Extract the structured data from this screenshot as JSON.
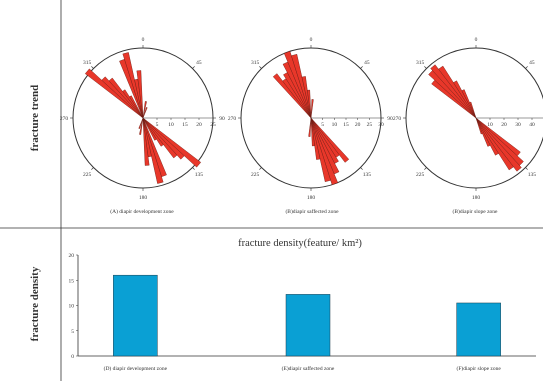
{
  "sections": {
    "top_label": "fracture trend",
    "bottom_label": "fracture density"
  },
  "chart_data": [
    {
      "type": "rose",
      "caption": "(A) diapir development zone",
      "direction_ticks": [
        "0",
        "45",
        "90",
        "135",
        "180",
        "225",
        "270",
        "315"
      ],
      "scale_ticks": [
        "5",
        "10",
        "15",
        "20",
        "25"
      ],
      "petals": [
        {
          "azimuth": 310,
          "value": 26
        },
        {
          "azimuth": 315,
          "value": 20
        },
        {
          "azimuth": 320,
          "value": 18
        },
        {
          "azimuth": 325,
          "value": 12
        },
        {
          "azimuth": 330,
          "value": 9
        },
        {
          "azimuth": 340,
          "value": 22
        },
        {
          "azimuth": 345,
          "value": 24
        },
        {
          "azimuth": 350,
          "value": 14
        },
        {
          "azimuth": 355,
          "value": 17
        },
        {
          "azimuth": 10,
          "value": 6
        },
        {
          "azimuth": 20,
          "value": 4
        },
        {
          "azimuth": 130,
          "value": 26
        },
        {
          "azimuth": 135,
          "value": 20
        },
        {
          "azimuth": 140,
          "value": 18
        },
        {
          "azimuth": 145,
          "value": 12
        },
        {
          "azimuth": 150,
          "value": 9
        },
        {
          "azimuth": 160,
          "value": 22
        },
        {
          "azimuth": 165,
          "value": 24
        },
        {
          "azimuth": 170,
          "value": 14
        },
        {
          "azimuth": 175,
          "value": 17
        },
        {
          "azimuth": 190,
          "value": 6
        },
        {
          "azimuth": 200,
          "value": 4
        }
      ],
      "max": 25,
      "fill": "#e8372a"
    },
    {
      "type": "rose",
      "caption": "(B)diapir saffected zone",
      "direction_ticks": [
        "0",
        "45",
        "90",
        "135",
        "180",
        "225",
        "270",
        "315"
      ],
      "scale_ticks": [
        "5",
        "10",
        "15",
        "20",
        "25",
        "30"
      ],
      "petals": [
        {
          "azimuth": 320,
          "value": 24
        },
        {
          "azimuth": 325,
          "value": 20
        },
        {
          "azimuth": 330,
          "value": 22
        },
        {
          "azimuth": 335,
          "value": 26
        },
        {
          "azimuth": 340,
          "value": 30
        },
        {
          "azimuth": 345,
          "value": 28
        },
        {
          "azimuth": 350,
          "value": 18
        },
        {
          "azimuth": 355,
          "value": 12
        },
        {
          "azimuth": 5,
          "value": 8
        },
        {
          "azimuth": 140,
          "value": 24
        },
        {
          "azimuth": 145,
          "value": 20
        },
        {
          "azimuth": 150,
          "value": 22
        },
        {
          "azimuth": 155,
          "value": 26
        },
        {
          "azimuth": 160,
          "value": 30
        },
        {
          "azimuth": 165,
          "value": 28
        },
        {
          "azimuth": 170,
          "value": 18
        },
        {
          "azimuth": 175,
          "value": 12
        },
        {
          "azimuth": 185,
          "value": 8
        }
      ],
      "max": 30,
      "fill": "#e8372a"
    },
    {
      "type": "rose",
      "caption": "(B)diapir slope zone",
      "direction_ticks": [
        "0",
        "45",
        "90",
        "135",
        "180",
        "225",
        "270",
        "315"
      ],
      "scale_ticks": [
        "10",
        "20",
        "30",
        "40",
        "50"
      ],
      "petals": [
        {
          "azimuth": 310,
          "value": 40
        },
        {
          "azimuth": 315,
          "value": 46
        },
        {
          "azimuth": 320,
          "value": 48
        },
        {
          "azimuth": 325,
          "value": 44
        },
        {
          "azimuth": 330,
          "value": 30
        },
        {
          "azimuth": 335,
          "value": 22
        },
        {
          "azimuth": 340,
          "value": 12
        },
        {
          "azimuth": 130,
          "value": 40
        },
        {
          "azimuth": 135,
          "value": 46
        },
        {
          "azimuth": 140,
          "value": 48
        },
        {
          "azimuth": 145,
          "value": 44
        },
        {
          "azimuth": 150,
          "value": 30
        },
        {
          "azimuth": 155,
          "value": 22
        },
        {
          "azimuth": 160,
          "value": 12
        }
      ],
      "max": 50,
      "fill": "#e8372a"
    },
    {
      "type": "bar",
      "title": "fracture density(feature/ km²)",
      "categories": [
        "(D) diapir development zone",
        "(E)diapir saffected zone",
        "(F)diapir slope zone"
      ],
      "values": [
        16,
        12.2,
        10.5
      ],
      "ylim": [
        0,
        20
      ],
      "yticks": [
        "0",
        "5",
        "10",
        "15",
        "20"
      ],
      "bar_color": "#0aa0d4",
      "grid": false
    }
  ]
}
